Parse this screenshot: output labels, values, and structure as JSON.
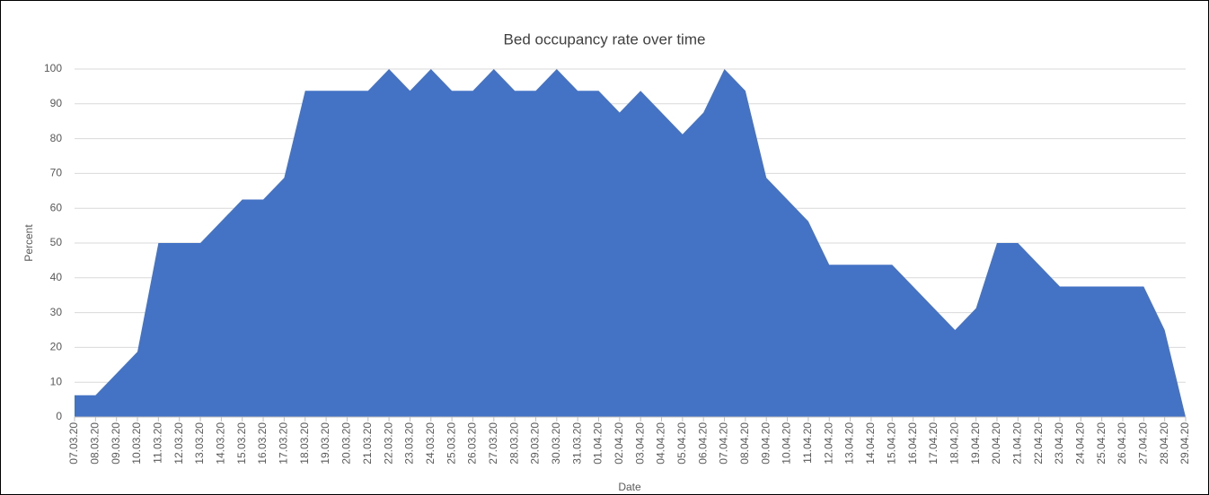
{
  "chart_data": {
    "type": "area",
    "title": "Bed occupancy rate over time",
    "x_label": "Date",
    "y_label": "Percent",
    "categories": [
      "07.03.20",
      "08.03.20",
      "09.03.20",
      "10.03.20",
      "11.03.20",
      "12.03.20",
      "13.03.20",
      "14.03.20",
      "15.03.20",
      "16.03.20",
      "17.03.20",
      "18.03.20",
      "19.03.20",
      "20.03.20",
      "21.03.20",
      "22.03.20",
      "23.03.20",
      "24.03.20",
      "25.03.20",
      "26.03.20",
      "27.03.20",
      "28.03.20",
      "29.03.20",
      "30.03.20",
      "31.03.20",
      "01.04.20",
      "02.04.20",
      "03.04.20",
      "04.04.20",
      "05.04.20",
      "06.04.20",
      "07.04.20",
      "08.04.20",
      "09.04.20",
      "10.04.20",
      "11.04.20",
      "12.04.20",
      "13.04.20",
      "14.04.20",
      "15.04.20",
      "16.04.20",
      "17.04.20",
      "18.04.20",
      "19.04.20",
      "20.04.20",
      "21.04.20",
      "22.04.20",
      "23.04.20",
      "24.04.20",
      "25.04.20",
      "26.04.20",
      "27.04.20",
      "28.04.20",
      "29.04.20"
    ],
    "values": [
      6.25,
      6.25,
      12.5,
      18.75,
      50,
      50,
      50,
      56.25,
      62.5,
      62.5,
      68.75,
      93.75,
      93.75,
      93.75,
      93.75,
      100,
      93.75,
      100,
      93.75,
      93.75,
      100,
      93.75,
      93.75,
      100,
      93.75,
      93.75,
      87.5,
      93.75,
      87.5,
      81.25,
      87.5,
      100,
      93.75,
      68.75,
      62.5,
      56.25,
      43.75,
      43.75,
      43.75,
      43.75,
      37.5,
      31.25,
      25,
      31.25,
      50,
      50,
      43.75,
      37.5,
      37.5,
      37.5,
      37.5,
      37.5,
      25,
      0
    ],
    "color": "#4472c4",
    "ylim": [
      0,
      100
    ],
    "yticks": [
      0,
      10,
      20,
      30,
      40,
      50,
      60,
      70,
      80,
      90,
      100
    ],
    "grid": true
  }
}
